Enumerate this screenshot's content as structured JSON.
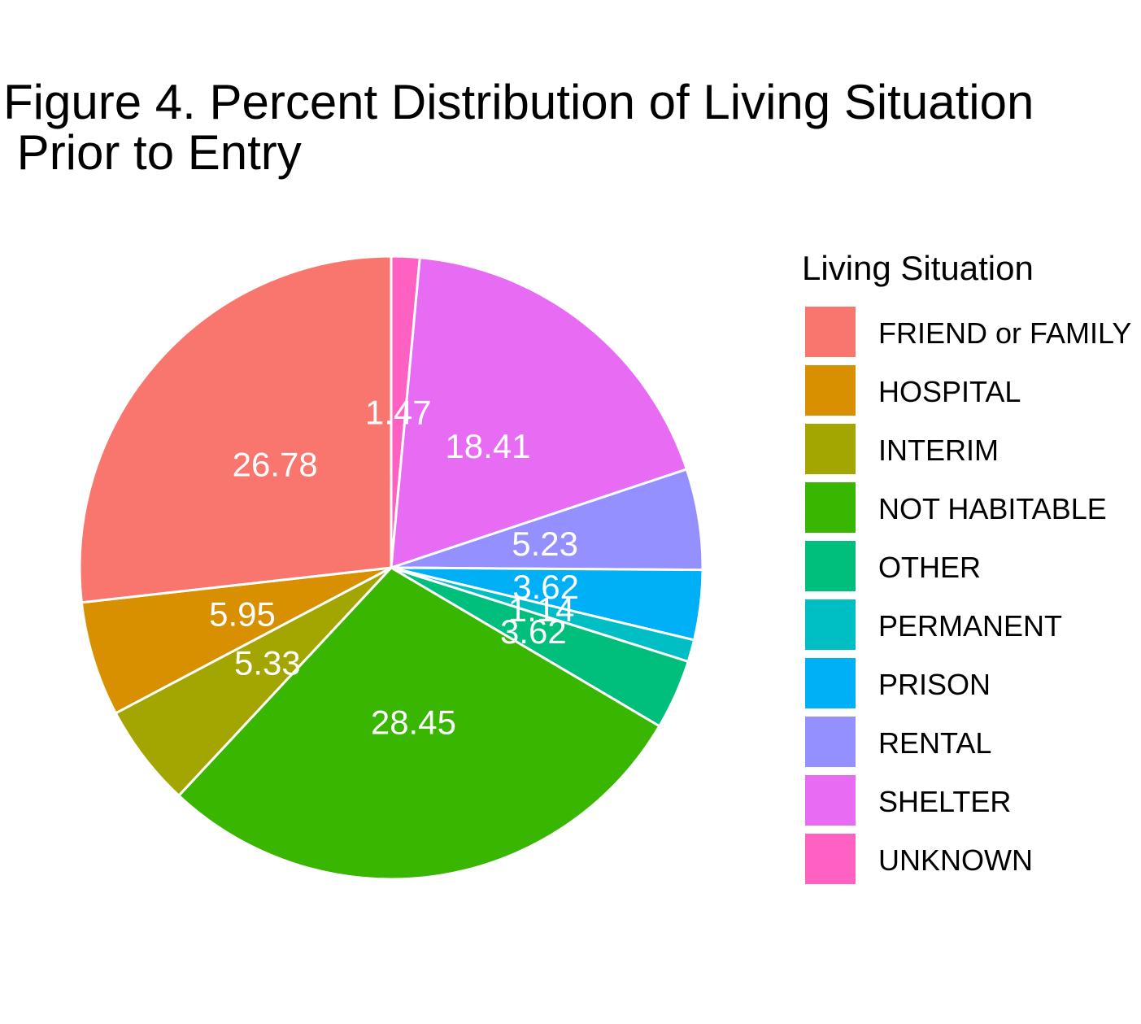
{
  "chart_data": {
    "type": "pie",
    "title_lines": [
      "Figure 4. Percent Distribution of Living Situation",
      " Prior to Entry"
    ],
    "legend_title": "Living Situation",
    "legend_position": "right",
    "start_angle_deg": 0,
    "direction": "clockwise",
    "slices": [
      {
        "name": "UNKNOWN",
        "value": 1.47,
        "label": "1.47",
        "color": "#FF61C3"
      },
      {
        "name": "SHELTER",
        "value": 18.41,
        "label": "18.41",
        "color": "#E76BF3"
      },
      {
        "name": "RENTAL",
        "value": 5.23,
        "label": "5.23",
        "color": "#9590FF"
      },
      {
        "name": "PRISON",
        "value": 3.62,
        "label": "3.62",
        "color": "#00B0F6"
      },
      {
        "name": "PERMANENT",
        "value": 1.14,
        "label": "1.14",
        "color": "#00BFC4"
      },
      {
        "name": "OTHER",
        "value": 3.62,
        "label": "3.62",
        "color": "#00BF7D"
      },
      {
        "name": "NOT HABITABLE",
        "value": 28.45,
        "label": "28.45",
        "color": "#39B600"
      },
      {
        "name": "INTERIM",
        "value": 5.33,
        "label": "5.33",
        "color": "#A3A500"
      },
      {
        "name": "HOSPITAL",
        "value": 5.95,
        "label": "5.95",
        "color": "#D89000"
      },
      {
        "name": "FRIEND or FAMILY",
        "value": 26.78,
        "label": "26.78",
        "color": "#F8766D"
      }
    ],
    "legend_order": [
      "FRIEND or FAMILY",
      "HOSPITAL",
      "INTERIM",
      "NOT HABITABLE",
      "OTHER",
      "PERMANENT",
      "PRISON",
      "RENTAL",
      "SHELTER",
      "UNKNOWN"
    ]
  }
}
